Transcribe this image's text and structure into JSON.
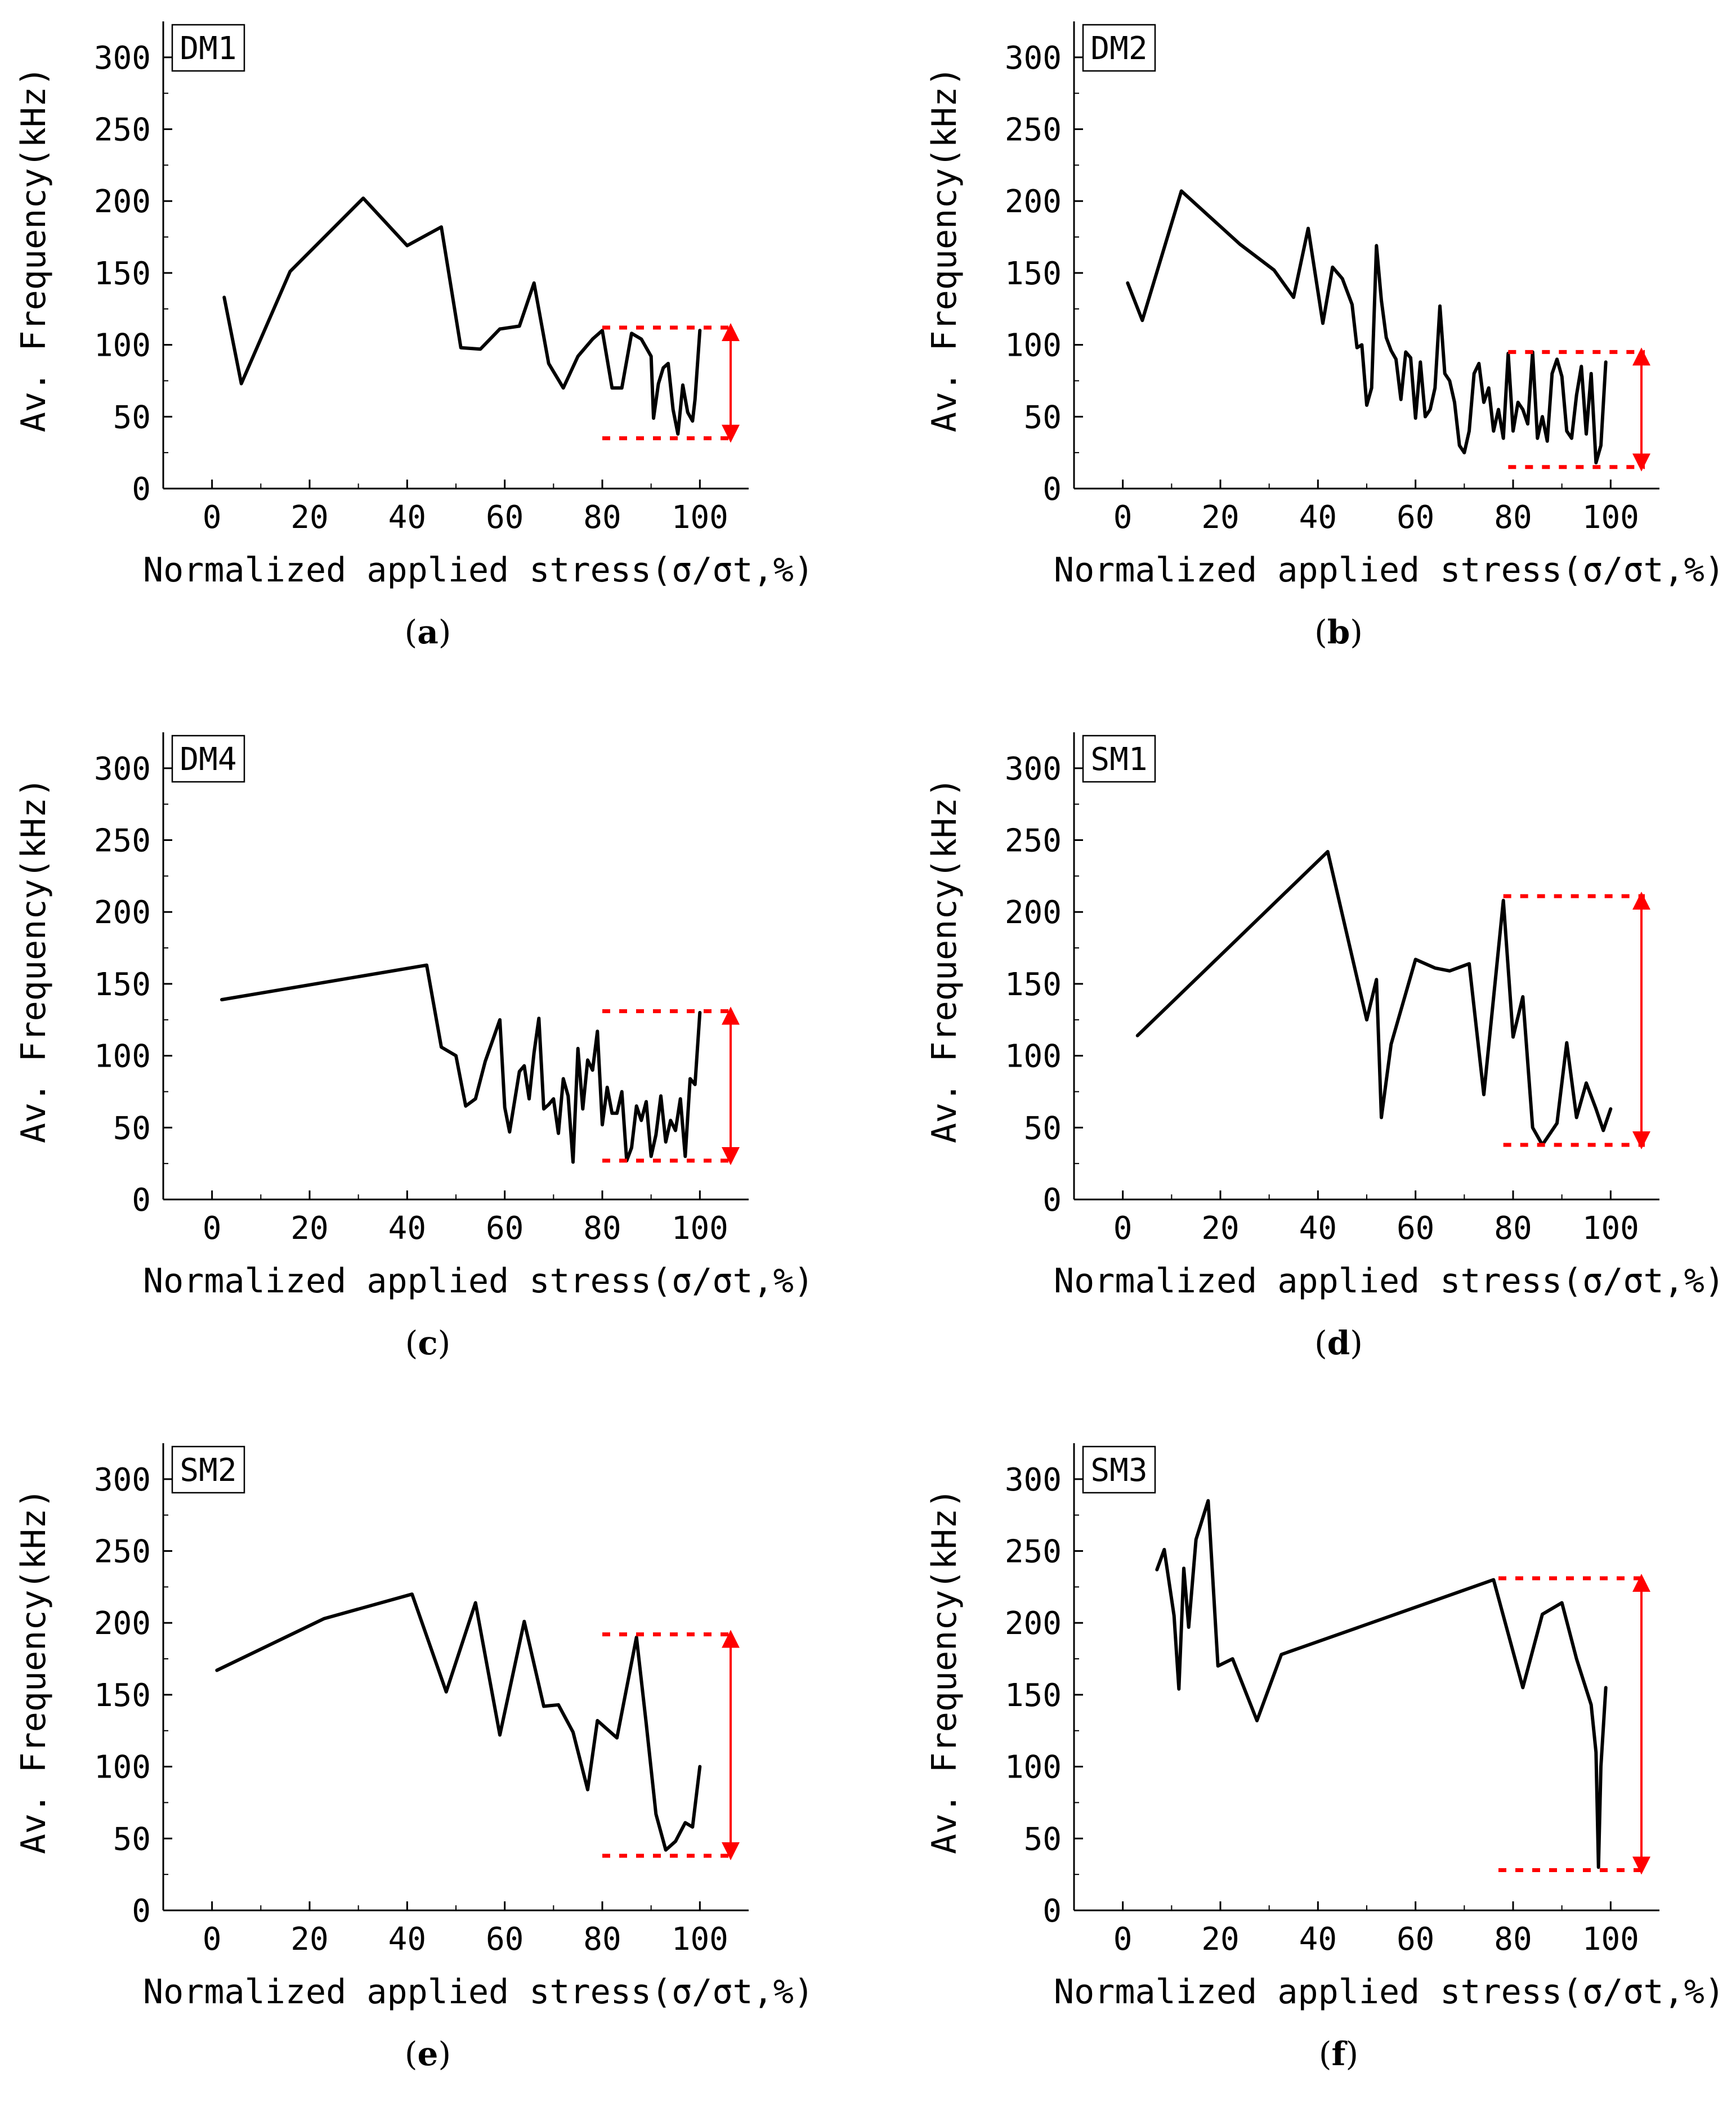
{
  "figure": {
    "panels": [
      {
        "label": "a",
        "sample": "DM1"
      },
      {
        "label": "b",
        "sample": "DM2"
      },
      {
        "label": "c",
        "sample": "DM4"
      },
      {
        "label": "d",
        "sample": "SM1"
      },
      {
        "label": "e",
        "sample": "SM2"
      },
      {
        "label": "f",
        "sample": "SM3"
      }
    ]
  },
  "chart_data": [
    {
      "type": "line",
      "panel": "a",
      "title": "DM1",
      "xlabel": "Normalized applied stress(σ/σt,%)",
      "ylabel": "Av. Frequency(kHz)",
      "xlim": [
        -10,
        110
      ],
      "ylim": [
        0,
        325
      ],
      "xticks": [
        0,
        20,
        40,
        60,
        80,
        100
      ],
      "yticks": [
        0,
        50,
        100,
        150,
        200,
        250,
        300
      ],
      "series": [
        {
          "name": "DM1",
          "color": "#000000",
          "x": [
            2.5,
            6,
            16,
            31,
            40,
            47,
            51,
            55,
            59,
            63,
            66,
            69,
            72,
            75,
            78,
            80,
            82,
            84,
            86,
            88,
            90,
            90.5,
            91.5,
            92.5,
            93.5,
            94.5,
            95.5,
            96.5,
            97.5,
            98.5,
            99,
            100
          ],
          "y": [
            133,
            73,
            151,
            202,
            169,
            182,
            98,
            97,
            111,
            113,
            143,
            87,
            70,
            92,
            104,
            110,
            70,
            70,
            108,
            104,
            92,
            49,
            73,
            84,
            87,
            55,
            38,
            72,
            53,
            47,
            62,
            110
          ]
        }
      ],
      "range_band": {
        "top": 112,
        "bottom": 35,
        "x_start": 80,
        "x_end": 107,
        "color": "#ff0000"
      }
    },
    {
      "type": "line",
      "panel": "b",
      "title": "DM2",
      "xlabel": "Normalized applied stress(σ/σt,%)",
      "ylabel": "Av. Frequency(kHz)",
      "xlim": [
        -10,
        110
      ],
      "ylim": [
        0,
        325
      ],
      "xticks": [
        0,
        20,
        40,
        60,
        80,
        100
      ],
      "yticks": [
        0,
        50,
        100,
        150,
        200,
        250,
        300
      ],
      "series": [
        {
          "name": "DM2",
          "color": "#000000",
          "x": [
            1,
            4,
            12,
            24,
            31,
            35,
            38,
            41,
            43,
            45,
            47,
            48,
            49,
            50,
            51,
            52,
            53,
            54,
            55,
            56,
            57,
            58,
            59,
            60,
            61,
            62,
            63,
            64,
            65,
            66,
            67,
            68,
            69,
            70,
            71,
            72,
            73,
            74,
            75,
            76,
            77,
            78,
            79,
            80,
            81,
            82,
            83,
            84,
            85,
            86,
            87,
            88,
            89,
            90,
            91,
            92,
            93,
            94,
            95,
            96,
            97,
            98,
            99
          ],
          "y": [
            143,
            117,
            207,
            170,
            152,
            133,
            181,
            115,
            154,
            146,
            128,
            98,
            100,
            58,
            70,
            169,
            131,
            105,
            96,
            90,
            62,
            95,
            91,
            49,
            88,
            50,
            55,
            70,
            127,
            80,
            75,
            60,
            30,
            25,
            40,
            80,
            87,
            60,
            70,
            40,
            55,
            35,
            94,
            40,
            60,
            55,
            45,
            95,
            35,
            50,
            33,
            80,
            90,
            78,
            40,
            35,
            65,
            85,
            38,
            80,
            18,
            30,
            88
          ]
        }
      ],
      "range_band": {
        "top": 95,
        "bottom": 15,
        "x_start": 79,
        "x_end": 107,
        "color": "#ff0000"
      }
    },
    {
      "type": "line",
      "panel": "c",
      "title": "DM4",
      "xlabel": "Normalized applied stress(σ/σt,%)",
      "ylabel": "Av. Frequency(kHz)",
      "xlim": [
        -10,
        110
      ],
      "ylim": [
        0,
        325
      ],
      "xticks": [
        0,
        20,
        40,
        60,
        80,
        100
      ],
      "yticks": [
        0,
        50,
        100,
        150,
        200,
        250,
        300
      ],
      "series": [
        {
          "name": "DM4",
          "color": "#000000",
          "x": [
            2,
            44,
            47,
            50,
            52,
            54,
            56,
            59,
            60,
            61,
            63,
            64,
            65,
            66,
            67,
            68,
            69,
            70,
            71,
            72,
            73,
            74,
            75,
            76,
            77,
            78,
            79,
            80,
            81,
            82,
            83,
            84,
            85,
            86,
            87,
            88,
            89,
            90,
            91,
            92,
            93,
            94,
            95,
            96,
            97,
            98,
            99,
            100
          ],
          "y": [
            139,
            163,
            106,
            100,
            65,
            70,
            96,
            125,
            64,
            47,
            89,
            93,
            70,
            102,
            126,
            63,
            66,
            70,
            46,
            84,
            72,
            26,
            105,
            63,
            97,
            90,
            117,
            52,
            78,
            60,
            60,
            75,
            27,
            36,
            65,
            55,
            68,
            30,
            45,
            72,
            40,
            55,
            48,
            70,
            30,
            84,
            80,
            130
          ]
        }
      ],
      "range_band": {
        "top": 131,
        "bottom": 27,
        "x_start": 80,
        "x_end": 107,
        "color": "#ff0000"
      }
    },
    {
      "type": "line",
      "panel": "d",
      "title": "SM1",
      "xlabel": "Normalized applied stress(σ/σt,%)",
      "ylabel": "Av. Frequency(kHz)",
      "xlim": [
        -10,
        110
      ],
      "ylim": [
        0,
        325
      ],
      "xticks": [
        0,
        20,
        40,
        60,
        80,
        100
      ],
      "yticks": [
        0,
        50,
        100,
        150,
        200,
        250,
        300
      ],
      "series": [
        {
          "name": "SM1",
          "color": "#000000",
          "x": [
            3,
            42,
            50,
            52,
            53,
            55,
            60,
            64,
            67,
            71,
            74,
            78,
            80,
            82,
            84,
            86,
            89,
            91,
            93,
            95,
            97,
            98.5,
            100
          ],
          "y": [
            114,
            242,
            125,
            153,
            57,
            108,
            167,
            161,
            159,
            164,
            73,
            208,
            113,
            141,
            50,
            38,
            53,
            109,
            57,
            81,
            63,
            48,
            63
          ]
        }
      ],
      "range_band": {
        "top": 211,
        "bottom": 38,
        "x_start": 78,
        "x_end": 107,
        "color": "#ff0000"
      }
    },
    {
      "type": "line",
      "panel": "e",
      "title": "SM2",
      "xlabel": "Normalized applied stress(σ/σt,%)",
      "ylabel": "Av. Frequency(kHz)",
      "xlim": [
        -10,
        110
      ],
      "ylim": [
        0,
        325
      ],
      "xticks": [
        0,
        20,
        40,
        60,
        80,
        100
      ],
      "yticks": [
        0,
        50,
        100,
        150,
        200,
        250,
        300
      ],
      "series": [
        {
          "name": "SM2",
          "color": "#000000",
          "x": [
            1,
            23,
            41,
            48,
            54,
            59,
            64,
            68,
            71,
            74,
            77,
            79,
            83,
            87,
            89,
            91,
            93,
            95,
            97,
            98.5,
            100
          ],
          "y": [
            167,
            203,
            220,
            152,
            214,
            122,
            201,
            142,
            143,
            124,
            84,
            132,
            120,
            190,
            130,
            67,
            42,
            48,
            61,
            58,
            100
          ]
        }
      ],
      "range_band": {
        "top": 192,
        "bottom": 38,
        "x_start": 80,
        "x_end": 107,
        "color": "#ff0000"
      }
    },
    {
      "type": "line",
      "panel": "f",
      "title": "SM3",
      "xlabel": "Normalized applied stress(σ/σt,%)",
      "ylabel": "Av. Frequency(kHz)",
      "xlim": [
        -10,
        110
      ],
      "ylim": [
        0,
        325
      ],
      "xticks": [
        0,
        20,
        40,
        60,
        80,
        100
      ],
      "yticks": [
        0,
        50,
        100,
        150,
        200,
        250,
        300
      ],
      "series": [
        {
          "name": "SM3",
          "color": "#000000",
          "x": [
            7,
            8.5,
            10.5,
            11.5,
            12.5,
            13.5,
            15,
            17.5,
            19.5,
            22.5,
            27.5,
            32.5,
            76,
            82,
            86,
            90,
            93,
            96,
            97,
            97.5,
            98,
            99
          ],
          "y": [
            237,
            251,
            205,
            154,
            238,
            197,
            258,
            285,
            170,
            175,
            132,
            178,
            230,
            155,
            206,
            214,
            175,
            143,
            110,
            30,
            100,
            155
          ]
        }
      ],
      "range_band": {
        "top": 231,
        "bottom": 28,
        "x_start": 77,
        "x_end": 107,
        "color": "#ff0000"
      }
    }
  ]
}
